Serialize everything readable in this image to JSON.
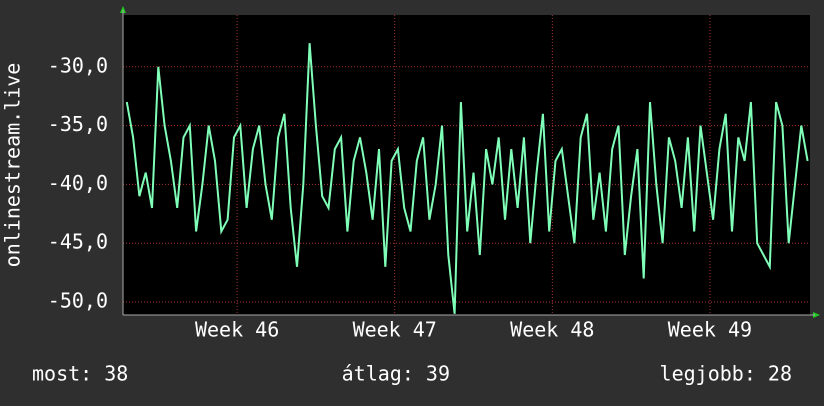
{
  "chart_data": {
    "type": "line",
    "ylabel": "onlinestream.live",
    "x": [
      45.3,
      45.34,
      45.38,
      45.42,
      45.46,
      45.5,
      45.54,
      45.58,
      45.62,
      45.66,
      45.7,
      45.74,
      45.78,
      45.82,
      45.86,
      45.9,
      45.94,
      45.98,
      46.02,
      46.06,
      46.1,
      46.14,
      46.18,
      46.22,
      46.26,
      46.3,
      46.34,
      46.38,
      46.42,
      46.46,
      46.5,
      46.54,
      46.58,
      46.62,
      46.66,
      46.7,
      46.74,
      46.78,
      46.82,
      46.86,
      46.9,
      46.94,
      46.98,
      47.02,
      47.06,
      47.1,
      47.14,
      47.18,
      47.22,
      47.26,
      47.3,
      47.34,
      47.38,
      47.42,
      47.46,
      47.5,
      47.54,
      47.58,
      47.62,
      47.66,
      47.7,
      47.74,
      47.78,
      47.82,
      47.86,
      47.9,
      47.94,
      47.98,
      48.02,
      48.06,
      48.1,
      48.14,
      48.18,
      48.22,
      48.26,
      48.3,
      48.34,
      48.38,
      48.42,
      48.46,
      48.5,
      48.54,
      48.58,
      48.62,
      48.66,
      48.7,
      48.74,
      48.78,
      48.82,
      48.86,
      48.9,
      48.94,
      48.98,
      49.02,
      49.06,
      49.1,
      49.14,
      49.18,
      49.22,
      49.26,
      49.3,
      49.34,
      49.38,
      49.42,
      49.46,
      49.5,
      49.54,
      49.58,
      49.62
    ],
    "series": [
      {
        "color": "#80ffb8",
        "values": [
          -33,
          -36,
          -41,
          -39,
          -42,
          -30,
          -35,
          -38,
          -42,
          -36,
          -35,
          -44,
          -40,
          -35,
          -38,
          -44,
          -43,
          -36,
          -35,
          -42,
          -37,
          -35,
          -40,
          -43,
          -36,
          -34,
          -42,
          -47,
          -40,
          -28,
          -35,
          -41,
          -42,
          -37,
          -36,
          -44,
          -38,
          -36,
          -39,
          -43,
          -37,
          -47,
          -38,
          -37,
          -42,
          -44,
          -38,
          -36,
          -43,
          -40,
          -35,
          -46,
          -51,
          -33,
          -44,
          -39,
          -46,
          -37,
          -40,
          -36,
          -43,
          -37,
          -42,
          -36,
          -45,
          -39,
          -34,
          -44,
          -38,
          -37,
          -41,
          -45,
          -36,
          -34,
          -43,
          -39,
          -44,
          -37,
          -35,
          -46,
          -41,
          -37,
          -48,
          -33,
          -40,
          -45,
          -36,
          -38,
          -42,
          -36,
          -44,
          -35,
          -39,
          -43,
          -37,
          -34,
          -44,
          -36,
          -38,
          -33,
          -45,
          -46,
          -47,
          -33,
          -35,
          -45,
          -40,
          -35,
          -38
        ]
      }
    ],
    "xlim": [
      45.276,
      49.635
    ],
    "xticks": [
      {
        "value": 46,
        "label": "Week 46"
      },
      {
        "value": 47,
        "label": "Week 47"
      },
      {
        "value": 48,
        "label": "Week 48"
      },
      {
        "value": 49,
        "label": "Week 49"
      }
    ],
    "ylim": [
      -51.1,
      -25.6
    ],
    "yticks": [
      {
        "value": -50,
        "label": "-50,0"
      },
      {
        "value": -45,
        "label": "-45,0"
      },
      {
        "value": -40,
        "label": "-40,0"
      },
      {
        "value": -35,
        "label": "-35,0"
      },
      {
        "value": -30,
        "label": "-30,0"
      }
    ],
    "grid": true,
    "footer": {
      "current": "most: 38",
      "average": "átlag: 39",
      "best": "legjobb: 28"
    }
  }
}
